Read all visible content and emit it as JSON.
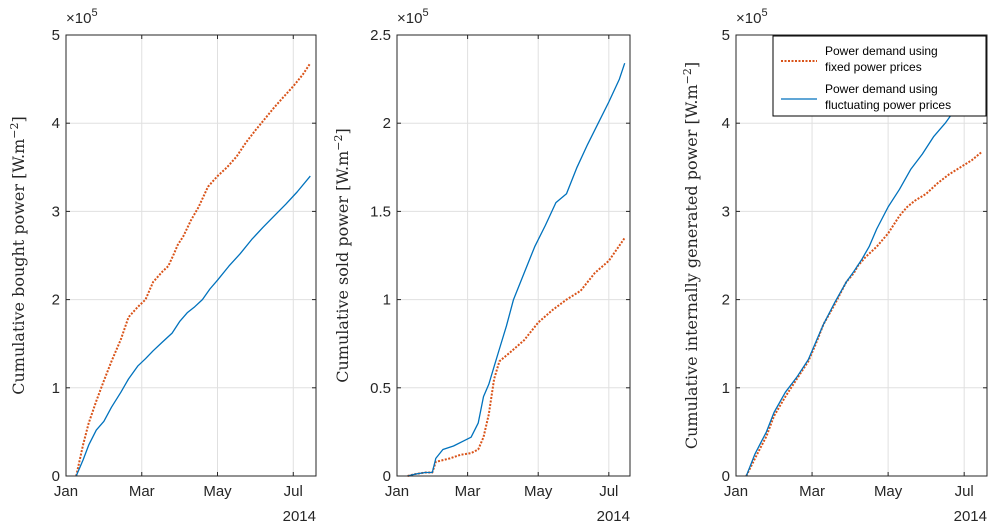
{
  "colors": {
    "fixed": "#D95319",
    "fluctuating": "#0072BD",
    "grid": "#e0e0e0",
    "axis": "#262626"
  },
  "legend": {
    "placement": "top-right",
    "panel": 2,
    "entries": [
      {
        "line1": "Power demand using",
        "line2": "fixed power prices"
      },
      {
        "line1": "Power demand using",
        "line2": "fluctuating power prices"
      }
    ]
  },
  "chart_data": [
    {
      "type": "line",
      "multiplier_base": "×10",
      "multiplier_exp": "5",
      "ylabel": "Cumulative bought power",
      "ylabel_unit_base": "[W.m",
      "ylabel_unit_exp": "−2",
      "ylabel_unit_close": "]",
      "xlim": [
        0,
        6.6
      ],
      "ylim": [
        0,
        5
      ],
      "xticks": [
        0,
        2,
        4,
        6
      ],
      "xticklabels": [
        "Jan",
        "Mar",
        "May",
        "Jul"
      ],
      "xyear": "2014",
      "yticks": [
        0,
        1,
        2,
        3,
        4,
        5
      ],
      "yticklabels": [
        "0",
        "1",
        "2",
        "3",
        "4",
        "5"
      ],
      "grid": true,
      "series": [
        {
          "key": "fixed",
          "x": [
            0.27,
            0.45,
            0.6,
            0.8,
            1.0,
            1.2,
            1.45,
            1.65,
            1.9,
            2.1,
            2.3,
            2.55,
            2.7,
            2.85,
            2.95,
            3.1,
            3.3,
            3.5,
            3.75,
            4.0,
            4.25,
            4.5,
            4.75,
            5.0,
            5.25,
            5.5,
            5.75,
            6.0,
            6.25,
            6.45
          ],
          "y": [
            0.0,
            0.35,
            0.6,
            0.85,
            1.08,
            1.3,
            1.55,
            1.8,
            1.92,
            2.0,
            2.2,
            2.32,
            2.38,
            2.52,
            2.62,
            2.72,
            2.9,
            3.05,
            3.28,
            3.4,
            3.5,
            3.62,
            3.78,
            3.92,
            4.05,
            4.18,
            4.3,
            4.42,
            4.55,
            4.68
          ]
        },
        {
          "key": "fluctuating",
          "x": [
            0.27,
            0.45,
            0.6,
            0.8,
            1.0,
            1.2,
            1.45,
            1.65,
            1.9,
            2.1,
            2.3,
            2.55,
            2.8,
            3.0,
            3.2,
            3.4,
            3.6,
            3.8,
            4.0,
            4.3,
            4.6,
            4.9,
            5.2,
            5.5,
            5.8,
            6.1,
            6.45
          ],
          "y": [
            0.0,
            0.18,
            0.35,
            0.52,
            0.62,
            0.78,
            0.95,
            1.1,
            1.25,
            1.33,
            1.42,
            1.52,
            1.62,
            1.75,
            1.85,
            1.92,
            2.0,
            2.12,
            2.22,
            2.38,
            2.52,
            2.68,
            2.82,
            2.95,
            3.08,
            3.22,
            3.4
          ]
        }
      ]
    },
    {
      "type": "line",
      "multiplier_base": "×10",
      "multiplier_exp": "5",
      "ylabel": "Cumulative sold power",
      "ylabel_unit_base": "[W.m",
      "ylabel_unit_exp": "−2",
      "ylabel_unit_close": "]",
      "xlim": [
        0,
        6.6
      ],
      "ylim": [
        0,
        2.5
      ],
      "xticks": [
        0,
        2,
        4,
        6
      ],
      "xticklabels": [
        "Jan",
        "Mar",
        "May",
        "Jul"
      ],
      "xyear": "2014",
      "yticks": [
        0,
        0.5,
        1,
        1.5,
        2,
        2.5
      ],
      "yticklabels": [
        "0",
        "0.5",
        "1",
        "1.5",
        "2",
        "2.5"
      ],
      "grid": true,
      "series": [
        {
          "key": "fixed",
          "x": [
            0.3,
            0.5,
            0.8,
            1.0,
            1.1,
            1.3,
            1.5,
            1.8,
            2.1,
            2.3,
            2.45,
            2.6,
            2.75,
            2.9,
            3.2,
            3.6,
            4.0,
            4.4,
            4.8,
            5.2,
            5.6,
            6.0,
            6.45
          ],
          "y": [
            0.0,
            0.01,
            0.02,
            0.02,
            0.08,
            0.09,
            0.1,
            0.12,
            0.13,
            0.15,
            0.22,
            0.35,
            0.55,
            0.65,
            0.7,
            0.77,
            0.87,
            0.94,
            1.0,
            1.05,
            1.15,
            1.22,
            1.35
          ]
        },
        {
          "key": "fluctuating",
          "x": [
            0.3,
            0.5,
            0.8,
            1.0,
            1.1,
            1.3,
            1.6,
            1.9,
            2.1,
            2.3,
            2.45,
            2.6,
            2.75,
            2.9,
            3.1,
            3.3,
            3.6,
            3.9,
            4.2,
            4.5,
            4.8,
            5.1,
            5.4,
            5.7,
            6.0,
            6.3,
            6.45
          ],
          "y": [
            0.0,
            0.01,
            0.02,
            0.02,
            0.1,
            0.15,
            0.17,
            0.2,
            0.22,
            0.3,
            0.45,
            0.52,
            0.62,
            0.72,
            0.85,
            1.0,
            1.15,
            1.3,
            1.42,
            1.55,
            1.6,
            1.75,
            1.88,
            2.0,
            2.12,
            2.25,
            2.34
          ]
        }
      ]
    },
    {
      "type": "line",
      "multiplier_base": "×10",
      "multiplier_exp": "5",
      "ylabel": "Cumulative internally generated power",
      "ylabel_unit_base": "[W.m",
      "ylabel_unit_exp": "−2",
      "ylabel_unit_close": "]",
      "xlim": [
        0,
        6.6
      ],
      "ylim": [
        0,
        5
      ],
      "xticks": [
        0,
        2,
        4,
        6
      ],
      "xticklabels": [
        "Jan",
        "Mar",
        "May",
        "Jul"
      ],
      "xyear": "2014",
      "yticks": [
        0,
        1,
        2,
        3,
        4,
        5
      ],
      "yticklabels": [
        "0",
        "1",
        "2",
        "3",
        "4",
        "5"
      ],
      "grid": true,
      "series": [
        {
          "key": "fixed",
          "x": [
            0.27,
            0.5,
            0.8,
            1.0,
            1.3,
            1.6,
            1.9,
            2.1,
            2.3,
            2.6,
            2.9,
            3.1,
            3.2,
            3.4,
            3.7,
            4.0,
            4.3,
            4.5,
            4.7,
            5.0,
            5.3,
            5.6,
            5.9,
            6.2,
            6.45
          ],
          "y": [
            0.0,
            0.2,
            0.45,
            0.68,
            0.9,
            1.1,
            1.3,
            1.5,
            1.72,
            1.95,
            2.2,
            2.3,
            2.38,
            2.48,
            2.6,
            2.75,
            2.95,
            3.05,
            3.12,
            3.2,
            3.32,
            3.42,
            3.5,
            3.58,
            3.67
          ]
        },
        {
          "key": "fluctuating",
          "x": [
            0.27,
            0.5,
            0.8,
            1.0,
            1.3,
            1.6,
            1.9,
            2.1,
            2.3,
            2.6,
            2.9,
            3.1,
            3.3,
            3.5,
            3.7,
            4.0,
            4.3,
            4.6,
            4.9,
            5.2,
            5.5,
            5.7
          ],
          "y": [
            0.0,
            0.25,
            0.5,
            0.72,
            0.95,
            1.12,
            1.32,
            1.52,
            1.72,
            1.97,
            2.2,
            2.32,
            2.45,
            2.6,
            2.8,
            3.05,
            3.25,
            3.48,
            3.65,
            3.85,
            4.0,
            4.12
          ]
        }
      ]
    }
  ]
}
